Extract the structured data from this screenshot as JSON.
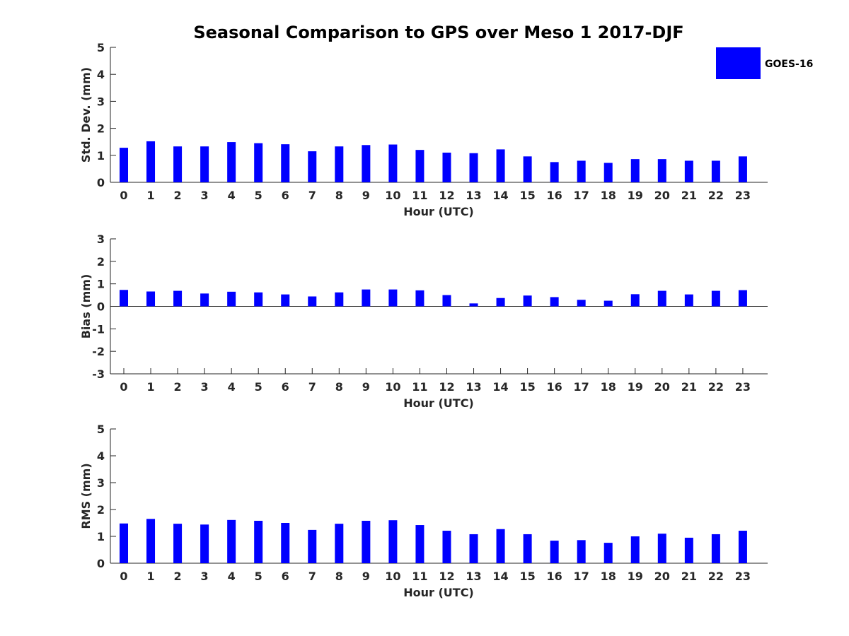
{
  "figure": {
    "title": "Seasonal Comparison to GPS over Meso 1 2017-DJF"
  },
  "legend": {
    "label": "GOES-16",
    "color": "#0000ff"
  },
  "chart_data": [
    {
      "type": "bar",
      "name": "std-dev",
      "xlabel": "Hour (UTC)",
      "ylabel": "Std. Dev. (mm)",
      "ylim": [
        0,
        5
      ],
      "yticks": [
        0,
        1,
        2,
        3,
        4,
        5
      ],
      "categories": [
        "0",
        "1",
        "2",
        "3",
        "4",
        "5",
        "6",
        "7",
        "8",
        "9",
        "10",
        "11",
        "12",
        "13",
        "14",
        "15",
        "16",
        "17",
        "18",
        "19",
        "20",
        "21",
        "22",
        "23"
      ],
      "series": [
        {
          "name": "GOES-16",
          "values": [
            1.28,
            1.52,
            1.33,
            1.33,
            1.49,
            1.45,
            1.41,
            1.15,
            1.33,
            1.38,
            1.4,
            1.2,
            1.1,
            1.08,
            1.22,
            0.96,
            0.75,
            0.8,
            0.72,
            0.86,
            0.86,
            0.8,
            0.8,
            0.96
          ]
        }
      ]
    },
    {
      "type": "bar",
      "name": "bias",
      "xlabel": "Hour (UTC)",
      "ylabel": "Bias (mm)",
      "ylim": [
        -3,
        3
      ],
      "yticks": [
        -3,
        -2,
        -1,
        0,
        1,
        2,
        3
      ],
      "categories": [
        "0",
        "1",
        "2",
        "3",
        "4",
        "5",
        "6",
        "7",
        "8",
        "9",
        "10",
        "11",
        "12",
        "13",
        "14",
        "15",
        "16",
        "17",
        "18",
        "19",
        "20",
        "21",
        "22",
        "23"
      ],
      "series": [
        {
          "name": "GOES-16",
          "values": [
            0.73,
            0.66,
            0.69,
            0.57,
            0.65,
            0.62,
            0.53,
            0.44,
            0.62,
            0.75,
            0.75,
            0.71,
            0.5,
            0.13,
            0.37,
            0.48,
            0.41,
            0.29,
            0.25,
            0.54,
            0.69,
            0.53,
            0.69,
            0.72
          ]
        }
      ]
    },
    {
      "type": "bar",
      "name": "rms",
      "xlabel": "Hour (UTC)",
      "ylabel": "RMS (mm)",
      "ylim": [
        0,
        5
      ],
      "yticks": [
        0,
        1,
        2,
        3,
        4,
        5
      ],
      "categories": [
        "0",
        "1",
        "2",
        "3",
        "4",
        "5",
        "6",
        "7",
        "8",
        "9",
        "10",
        "11",
        "12",
        "13",
        "14",
        "15",
        "16",
        "17",
        "18",
        "19",
        "20",
        "21",
        "22",
        "23"
      ],
      "series": [
        {
          "name": "GOES-16",
          "values": [
            1.48,
            1.65,
            1.47,
            1.44,
            1.61,
            1.58,
            1.5,
            1.24,
            1.47,
            1.58,
            1.6,
            1.42,
            1.21,
            1.08,
            1.27,
            1.08,
            0.84,
            0.86,
            0.76,
            1.0,
            1.1,
            0.95,
            1.08,
            1.21
          ]
        }
      ]
    }
  ]
}
